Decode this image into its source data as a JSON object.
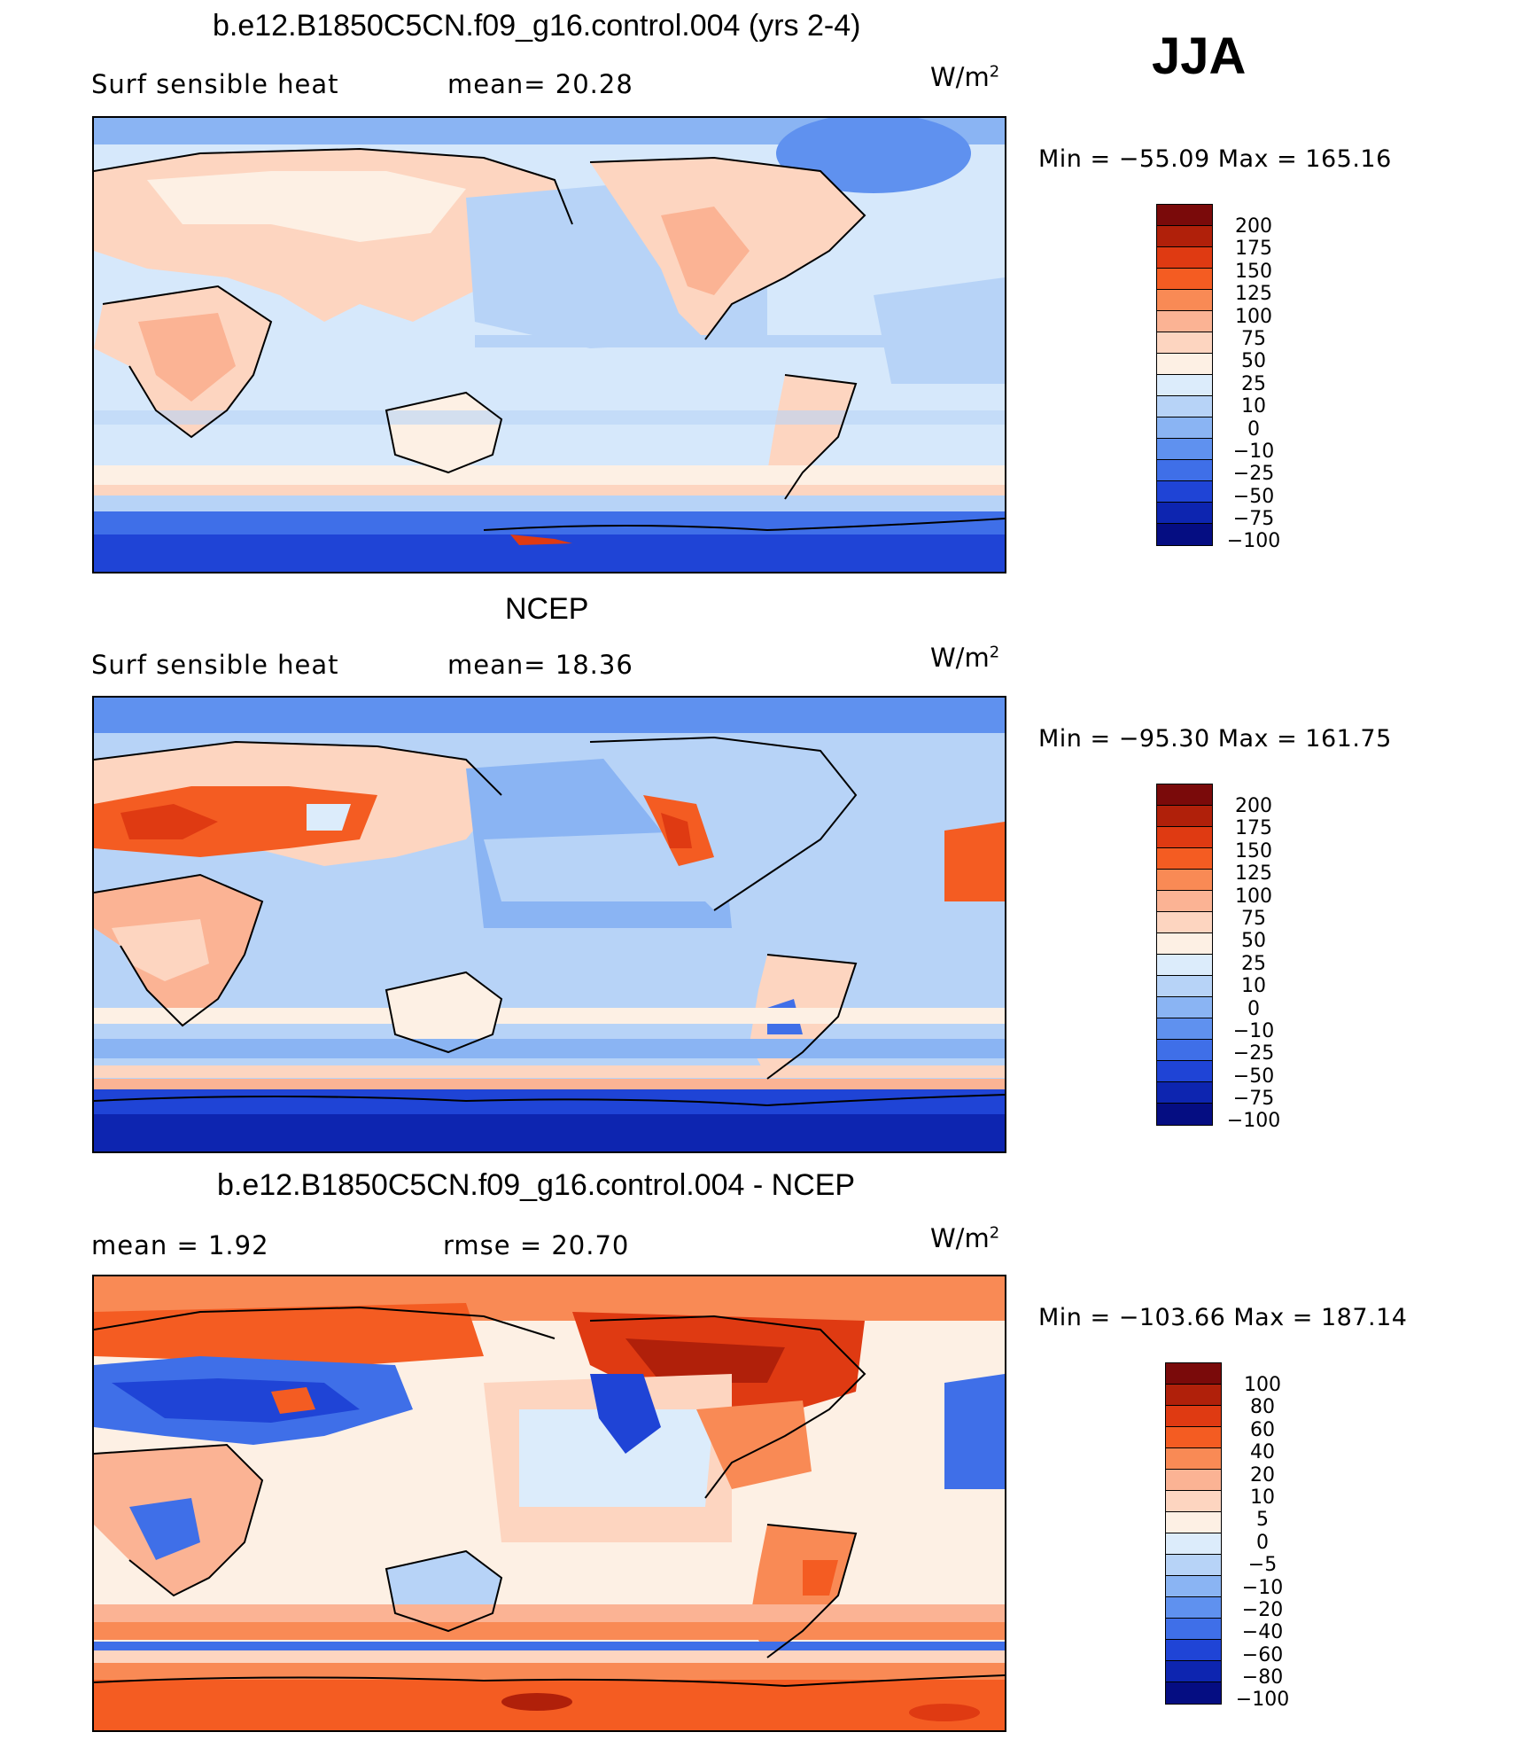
{
  "season": "JJA",
  "panels": [
    {
      "title": "b.e12.B1850C5CN.f09_g16.control.004 (yrs 2-4)",
      "left_stat": "Surf  sensible  heat",
      "right_stat": "mean=   20.28",
      "units": "W/m",
      "units_sup": "2",
      "minmax": "Min  =  −55.09  Max  =  165.16",
      "colorbar_labels": [
        "200",
        "175",
        "150",
        "125",
        "100",
        "75",
        "50",
        "25",
        "10",
        "0",
        "−10",
        "−25",
        "−50",
        "−75",
        "−100"
      ]
    },
    {
      "title": "NCEP",
      "left_stat": "Surf  sensible  heat",
      "right_stat": "mean=   18.36",
      "units": "W/m",
      "units_sup": "2",
      "minmax": "Min  =  −95.30  Max  =  161.75",
      "colorbar_labels": [
        "200",
        "175",
        "150",
        "125",
        "100",
        "75",
        "50",
        "25",
        "10",
        "0",
        "−10",
        "−25",
        "−50",
        "−75",
        "−100"
      ]
    },
    {
      "title": "b.e12.B1850C5CN.f09_g16.control.004 - NCEP",
      "left_stat": "mean  =     1.92",
      "right_stat": "rmse  =    20.70",
      "units": "W/m",
      "units_sup": "2",
      "minmax": "Min  =  −103.66  Max  =  187.14",
      "colorbar_labels": [
        "100",
        "80",
        "60",
        "40",
        "20",
        "10",
        "5",
        "0",
        "−5",
        "−10",
        "−20",
        "−40",
        "−60",
        "−80",
        "−100"
      ]
    }
  ],
  "colors": {
    "palette": [
      "#7a0a0a",
      "#b0200a",
      "#df3a12",
      "#f45c22",
      "#f98a55",
      "#fbb394",
      "#fdd5c0",
      "#fdf0e4",
      "#dcecfb",
      "#b7d3f7",
      "#8ab4f3",
      "#5f91ef",
      "#3f6fe8",
      "#1f44d6",
      "#0d25b0",
      "#050d82"
    ],
    "ocean": "#d6e8fb",
    "coast": "#000000"
  }
}
